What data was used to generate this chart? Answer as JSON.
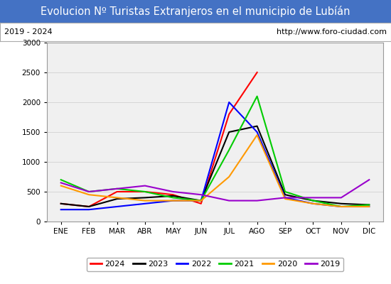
{
  "title": "Evolucion Nº Turistas Extranjeros en el municipio de Lubíán",
  "subtitle_left": "2019 - 2024",
  "subtitle_right": "http://www.foro-ciudad.com",
  "title_bg_color": "#4472c4",
  "title_text_color": "#ffffff",
  "plot_bg_color": "#f0f0f0",
  "months": [
    "ENE",
    "FEB",
    "MAR",
    "ABR",
    "MAY",
    "JUN",
    "JUL",
    "AGO",
    "SEP",
    "OCT",
    "NOV",
    "DIC"
  ],
  "ylim": [
    0,
    3000
  ],
  "yticks": [
    0,
    500,
    1000,
    1500,
    2000,
    2500,
    3000
  ],
  "series": {
    "2024": {
      "color": "#ff0000",
      "data": [
        300,
        250,
        500,
        500,
        450,
        300,
        1800,
        2500,
        null,
        null,
        null,
        null
      ]
    },
    "2023": {
      "color": "#000000",
      "data": [
        300,
        250,
        380,
        400,
        430,
        350,
        1500,
        1600,
        450,
        350,
        300,
        280
      ]
    },
    "2022": {
      "color": "#0000ff",
      "data": [
        200,
        200,
        250,
        300,
        350,
        350,
        2000,
        1500,
        400,
        300,
        250,
        250
      ]
    },
    "2021": {
      "color": "#00cc00",
      "data": [
        700,
        500,
        550,
        500,
        400,
        350,
        1200,
        2100,
        500,
        350,
        250,
        280
      ]
    },
    "2020": {
      "color": "#ff9900",
      "data": [
        600,
        450,
        400,
        350,
        350,
        350,
        750,
        1450,
        380,
        300,
        250,
        250
      ]
    },
    "2019": {
      "color": "#9900cc",
      "data": [
        650,
        500,
        550,
        600,
        500,
        450,
        350,
        350,
        400,
        400,
        400,
        700
      ]
    }
  }
}
